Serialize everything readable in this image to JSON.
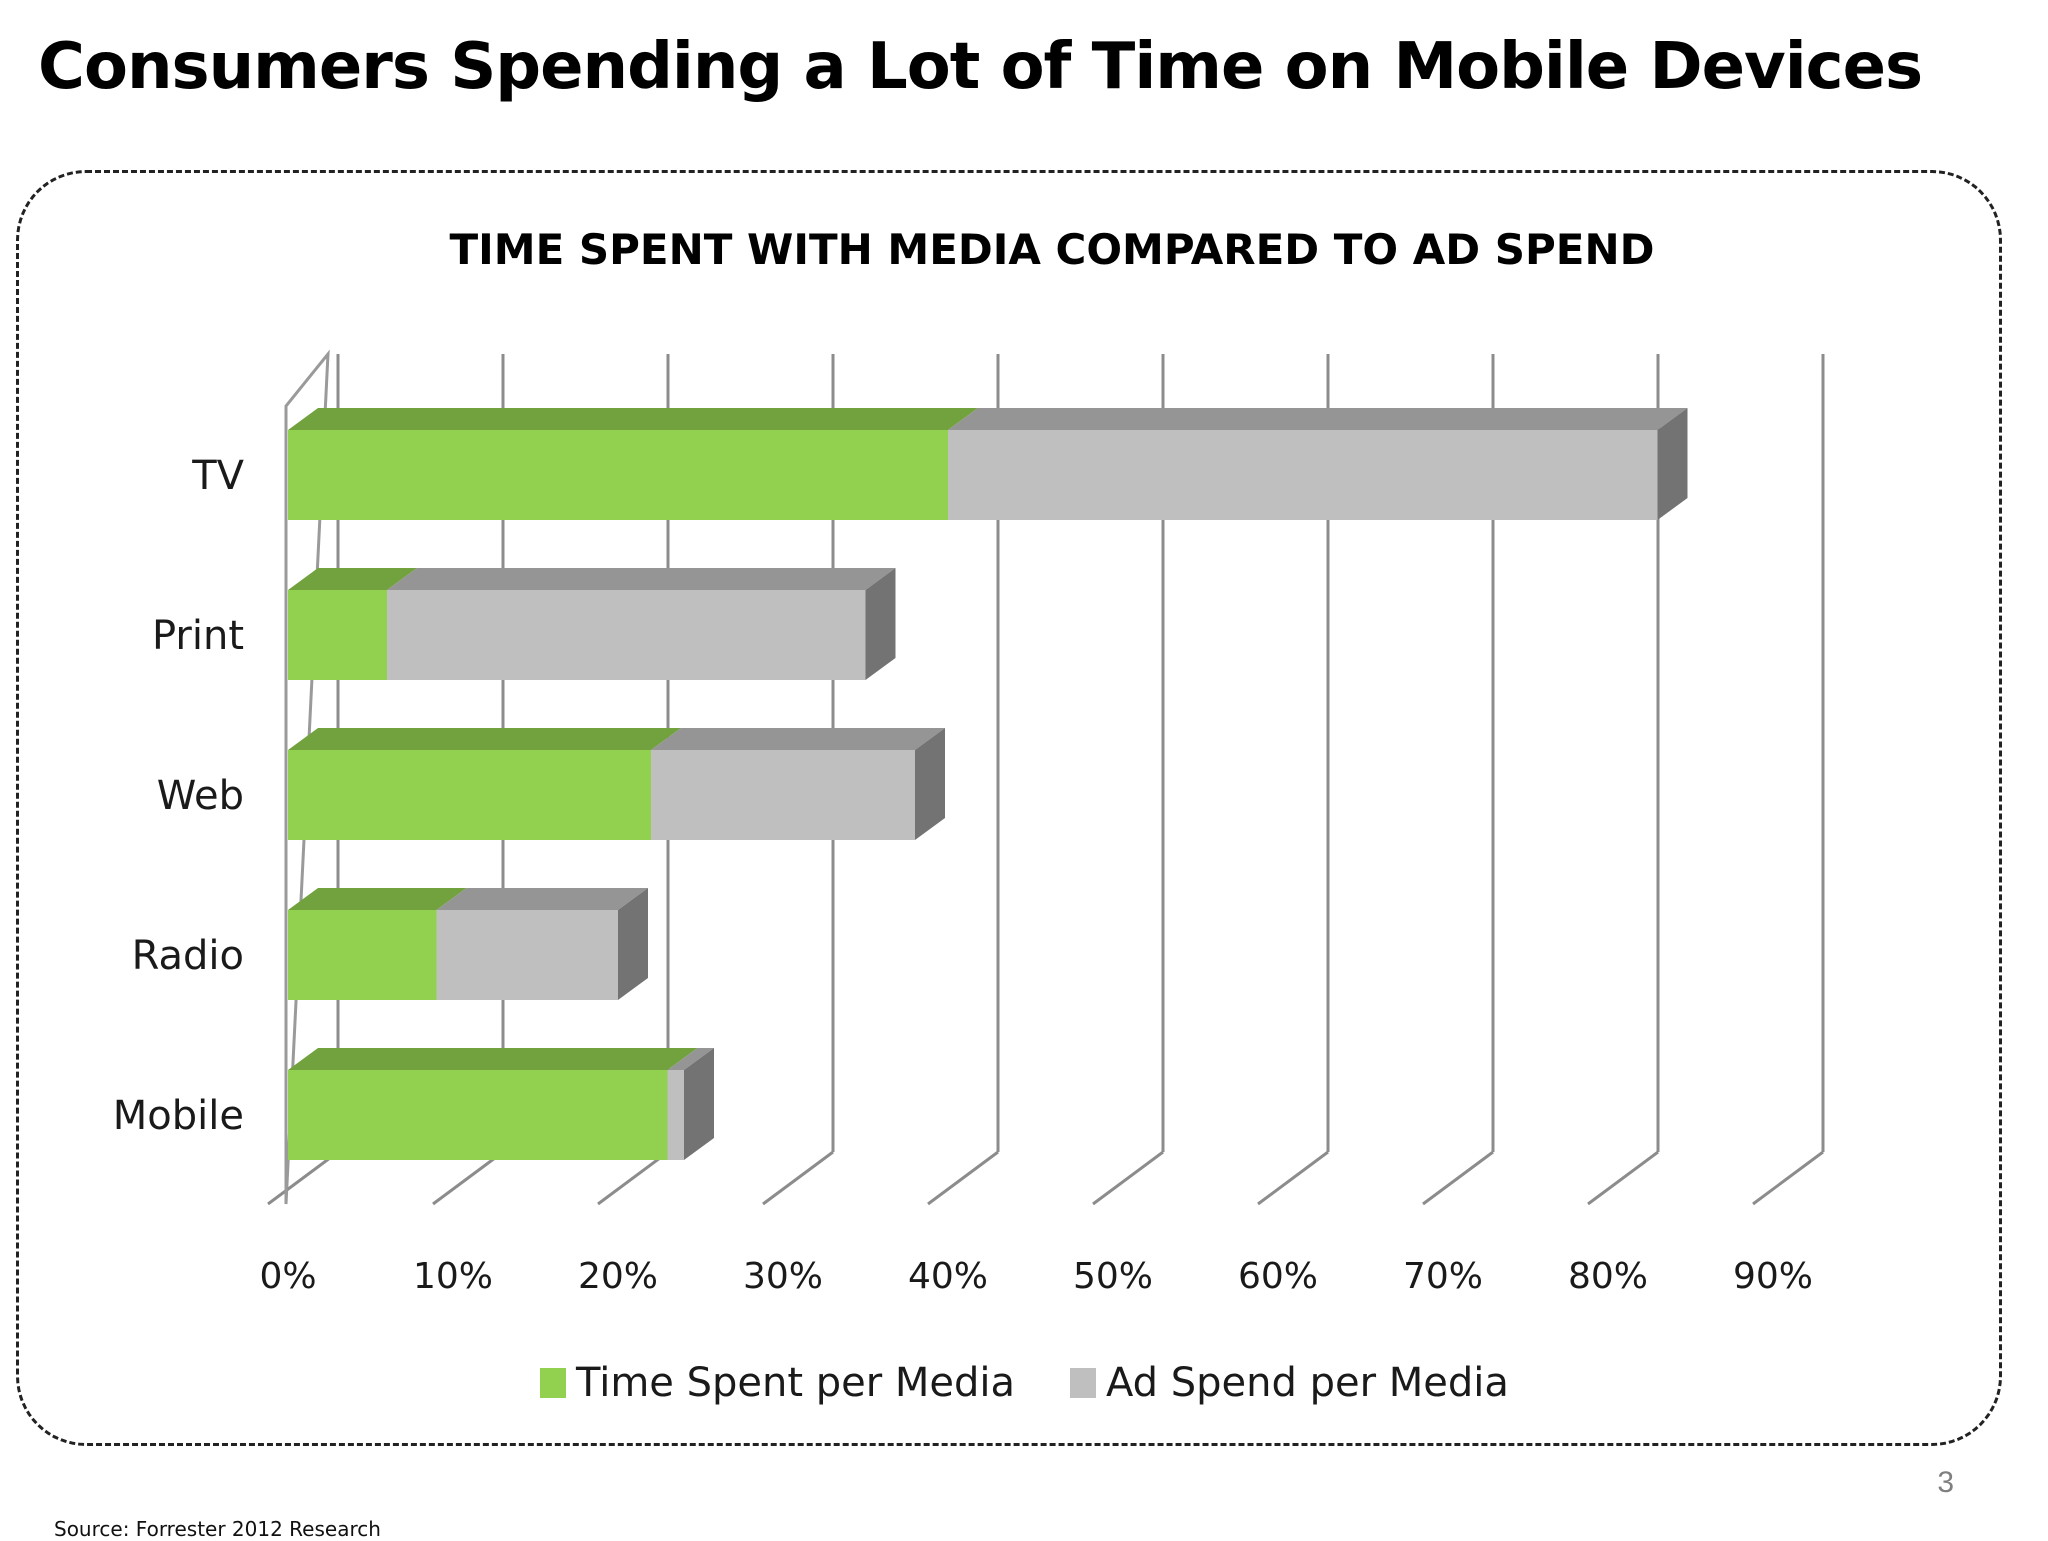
{
  "slide": {
    "title": "Consumers Spending a Lot of Time on Mobile Devices",
    "page_number": "3",
    "source": "Source: Forrester 2012 Research"
  },
  "chart_data": {
    "type": "bar",
    "orientation": "horizontal",
    "stacked": true,
    "style": "3d",
    "title": "TIME SPENT WITH MEDIA COMPARED TO AD SPEND",
    "xlabel": "",
    "ylabel": "",
    "categories": [
      "TV",
      "Print",
      "Web",
      "Radio",
      "Mobile"
    ],
    "series": [
      {
        "name": "Time Spent per Media",
        "color": "#92d050",
        "values": [
          40,
          6,
          22,
          9,
          23
        ]
      },
      {
        "name": "Ad Spend per Media",
        "color": "#bfbfbf",
        "values": [
          43,
          29,
          16,
          11,
          1
        ]
      }
    ],
    "xlim": [
      0,
      90
    ],
    "x_ticks": [
      0,
      10,
      20,
      30,
      40,
      50,
      60,
      70,
      80,
      90
    ],
    "x_tick_labels": [
      "0%",
      "10%",
      "20%",
      "30%",
      "40%",
      "50%",
      "60%",
      "70%",
      "80%",
      "90%"
    ],
    "grid": true,
    "legend_position": "bottom"
  }
}
